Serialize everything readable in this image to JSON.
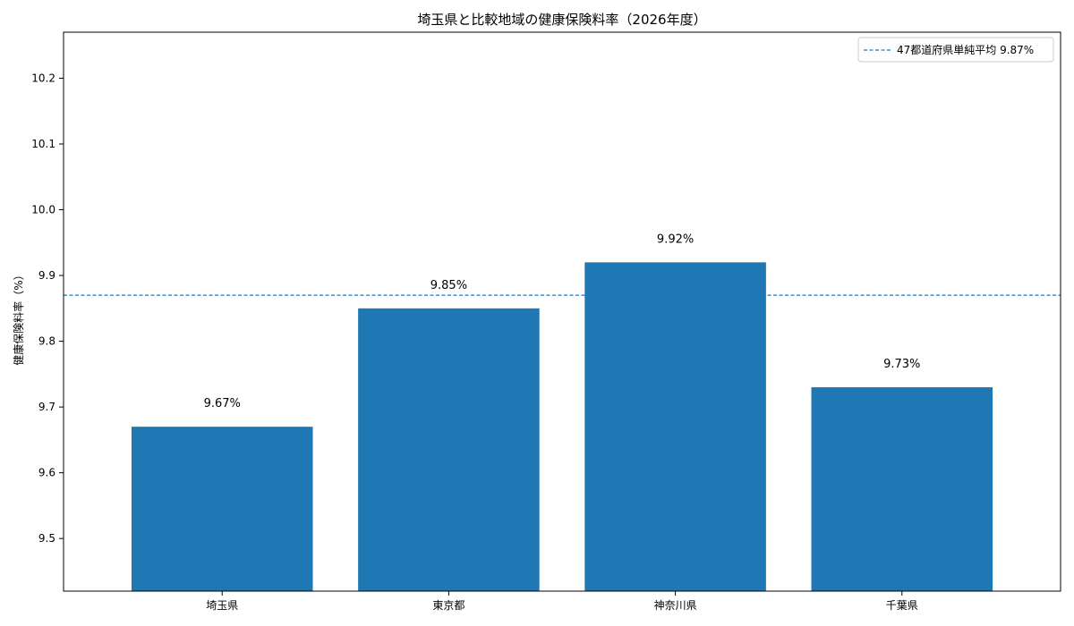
{
  "chart_data": {
    "type": "bar",
    "title": "埼玉県と比較地域の健康保険料率（2026年度）",
    "xlabel": "",
    "ylabel": "健康保険料率（%）",
    "categories": [
      "埼玉県",
      "東京都",
      "神奈川県",
      "千葉県"
    ],
    "values": [
      9.67,
      9.85,
      9.92,
      9.73
    ],
    "data_labels": [
      "9.67%",
      "9.85%",
      "9.92%",
      "9.73%"
    ],
    "ylim": [
      9.42,
      10.27
    ],
    "yticks": [
      9.5,
      9.6,
      9.7,
      9.8,
      9.9,
      10.0,
      10.1,
      10.2
    ],
    "ytick_labels": [
      "9.5",
      "9.6",
      "9.7",
      "9.8",
      "9.9",
      "10.0",
      "10.1",
      "10.2"
    ],
    "reference_line": {
      "value": 9.87,
      "label": "47都道府県単純平均 9.87%",
      "style": "dashed"
    },
    "legend": {
      "position": "upper right",
      "entries": [
        "47都道府県単純平均 9.87%"
      ]
    },
    "grid": false,
    "colors": {
      "bar": "#1f77b4",
      "reference_line": "#1f77b4"
    }
  }
}
